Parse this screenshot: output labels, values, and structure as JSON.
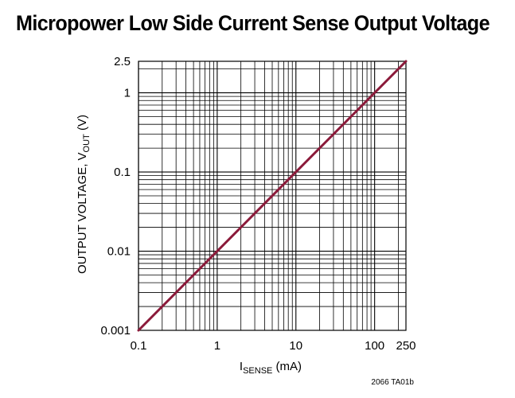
{
  "title": "Micropower Low Side Current Sense Output Voltage",
  "footnote": "2066 TA01b",
  "chart_data": {
    "type": "line",
    "x_scale": "log",
    "y_scale": "log",
    "xlim": [
      0.1,
      250
    ],
    "ylim": [
      0.001,
      2.5
    ],
    "grid": true,
    "xlabel": {
      "main": "I",
      "sub": "SENSE",
      "unit": " (mA)"
    },
    "ylabel": {
      "main": "OUTPUT VOLTAGE, V",
      "sub": "OUT",
      "unit": " (V)"
    },
    "x_ticks": [
      {
        "value": 0.1,
        "label": "0.1"
      },
      {
        "value": 1,
        "label": "1"
      },
      {
        "value": 10,
        "label": "10"
      },
      {
        "value": 100,
        "label": "100"
      },
      {
        "value": 250,
        "label": "250"
      }
    ],
    "y_ticks": [
      {
        "value": 0.001,
        "label": "0.001"
      },
      {
        "value": 0.01,
        "label": "0.01"
      },
      {
        "value": 0.1,
        "label": "0.1"
      },
      {
        "value": 1,
        "label": "1"
      },
      {
        "value": 2.5,
        "label": "2.5"
      }
    ],
    "series": [
      {
        "color": "#8b1a3a",
        "x": [
          0.1,
          250
        ],
        "y": [
          0.001,
          2.5
        ]
      }
    ]
  }
}
